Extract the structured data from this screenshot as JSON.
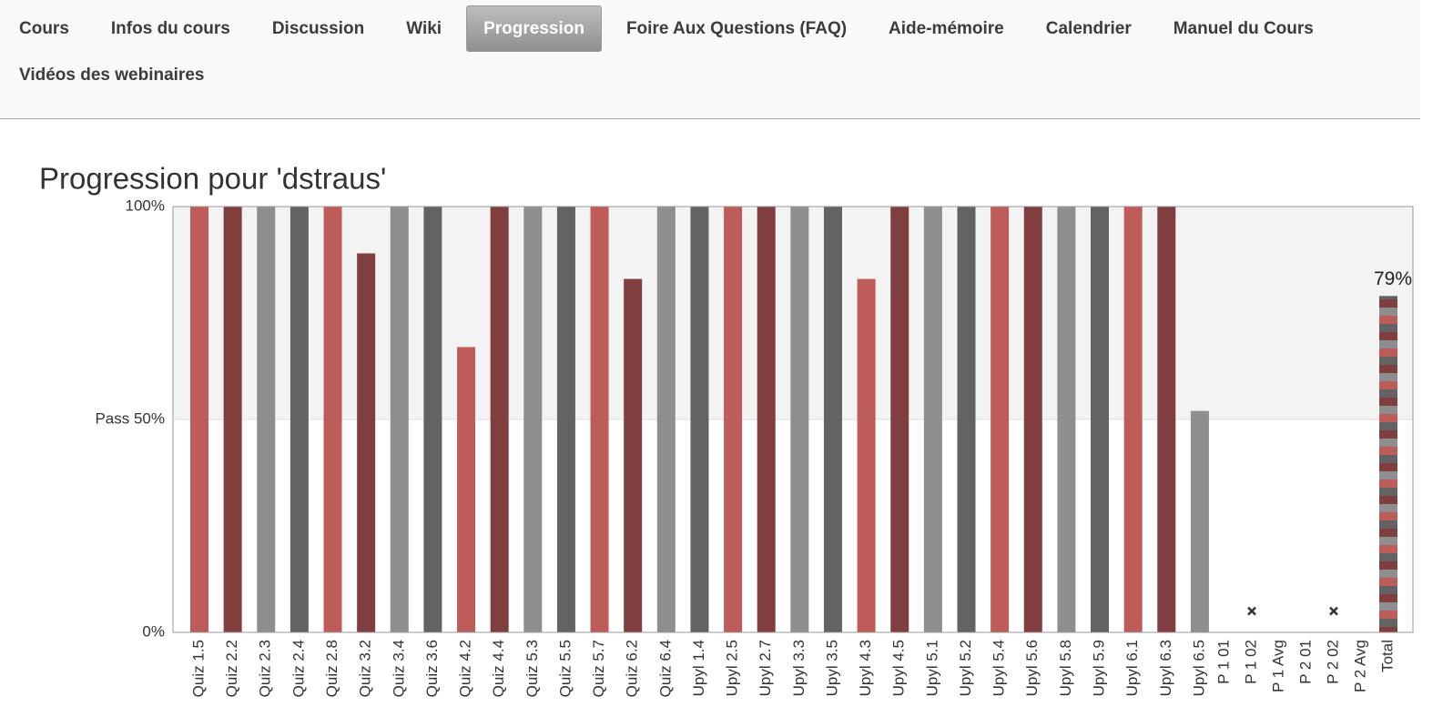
{
  "nav": {
    "tabs": [
      "Cours",
      "Infos du cours",
      "Discussion",
      "Wiki",
      "Progression",
      "Foire Aux Questions (FAQ)",
      "Aide-mémoire",
      "Calendrier",
      "Manuel du Cours",
      "Vidéos des webinaires"
    ],
    "active": 4
  },
  "chart_data": {
    "type": "bar",
    "title": "Progression pour 'dstraus'",
    "categories": [
      "Quiz 1.5",
      "Quiz 2.2",
      "Quiz 2.3",
      "Quiz 2.4",
      "Quiz 2.8",
      "Quiz 3.2",
      "Quiz 3.4",
      "Quiz 3.6",
      "Quiz 4.2",
      "Quiz 4.4",
      "Quiz 5.3",
      "Quiz 5.5",
      "Quiz 5.7",
      "Quiz 6.2",
      "Quiz 6.4",
      "Upyl 1.4",
      "Upyl 2.5",
      "Upyl 2.7",
      "Upyl 3.3",
      "Upyl 3.5",
      "Upyl 4.3",
      "Upyl 4.5",
      "Upyl 5.1",
      "Upyl 5.2",
      "Upyl 5.4",
      "Upyl 5.6",
      "Upyl 5.8",
      "Upyl 5.9",
      "Upyl 6.1",
      "Upyl 6.3",
      "Upyl 6.5",
      "P 1 01",
      "P 1 02",
      "P 1 Avg",
      "P 2 01",
      "P 2 02",
      "P 2 Avg",
      "Total"
    ],
    "values": [
      100,
      100,
      100,
      100,
      100,
      89,
      100,
      100,
      67,
      100,
      100,
      100,
      100,
      83,
      100,
      100,
      100,
      100,
      100,
      100,
      83,
      100,
      100,
      100,
      100,
      100,
      100,
      100,
      100,
      100,
      52,
      null,
      null,
      null,
      null,
      null,
      null,
      79
    ],
    "value_labels": [
      null,
      null,
      null,
      null,
      null,
      null,
      null,
      null,
      null,
      null,
      null,
      null,
      null,
      null,
      null,
      null,
      null,
      null,
      null,
      null,
      null,
      null,
      null,
      null,
      null,
      null,
      null,
      null,
      null,
      null,
      null,
      null,
      null,
      null,
      null,
      null,
      null,
      "79%"
    ],
    "markers": [
      null,
      null,
      null,
      null,
      null,
      null,
      null,
      null,
      null,
      null,
      null,
      null,
      null,
      null,
      null,
      null,
      null,
      null,
      null,
      null,
      null,
      null,
      null,
      null,
      null,
      null,
      null,
      null,
      null,
      null,
      null,
      null,
      5,
      null,
      null,
      5,
      null,
      null
    ],
    "colors": [
      "#b9534f",
      "#7a3434",
      "#888888",
      "#5b5b5b"
    ],
    "ylim": [
      0,
      100
    ],
    "yticks": [
      {
        "value": 0,
        "label": "0%"
      },
      {
        "value": 50,
        "label": "Pass 50%"
      },
      {
        "value": 100,
        "label": "100%"
      }
    ]
  }
}
